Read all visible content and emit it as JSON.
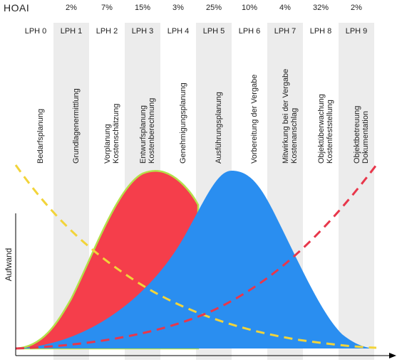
{
  "header": {
    "title": "HOAI"
  },
  "phases": [
    {
      "code": "LPH 0",
      "percent": "",
      "label_lines": [
        "Bedarfsplanung"
      ],
      "shaded": false
    },
    {
      "code": "LPH 1",
      "percent": "2%",
      "label_lines": [
        "Grundlagenermittlung"
      ],
      "shaded": true
    },
    {
      "code": "LPH 2",
      "percent": "7%",
      "label_lines": [
        "Vorplanung",
        "Kostenschätzung"
      ],
      "shaded": false
    },
    {
      "code": "LPH 3",
      "percent": "15%",
      "label_lines": [
        "Entwurfsplanung",
        "Kostenberechnung"
      ],
      "shaded": true
    },
    {
      "code": "LPH 4",
      "percent": "3%",
      "label_lines": [
        "Genehmigungsplanung"
      ],
      "shaded": false
    },
    {
      "code": "LPH 5",
      "percent": "25%",
      "label_lines": [
        "Ausführungsplanung"
      ],
      "shaded": true
    },
    {
      "code": "LPH 6",
      "percent": "10%",
      "label_lines": [
        "Vorbereitung der Vergabe"
      ],
      "shaded": false
    },
    {
      "code": "LPH 7",
      "percent": "4%",
      "label_lines": [
        "Mitwirkung bei der Vergabe",
        "Kostenanschlag"
      ],
      "shaded": true
    },
    {
      "code": "LPH 8",
      "percent": "32%",
      "label_lines": [
        "Objektüberwachung",
        "Kostenfeststellung"
      ],
      "shaded": false
    },
    {
      "code": "LPH 9",
      "percent": "2%",
      "label_lines": [
        "Objektbetreuung",
        "Dokumentation"
      ],
      "shaded": true
    }
  ],
  "axis": {
    "ylabel": "Aufwand"
  },
  "colors": {
    "stripe": "#ececec",
    "red_area": "#f53e4b",
    "red_outline": "#b4e04a",
    "blue_area": "#2a8ef0",
    "yellow_dash": "#f2d43a",
    "red_dash": "#e8374b"
  }
}
